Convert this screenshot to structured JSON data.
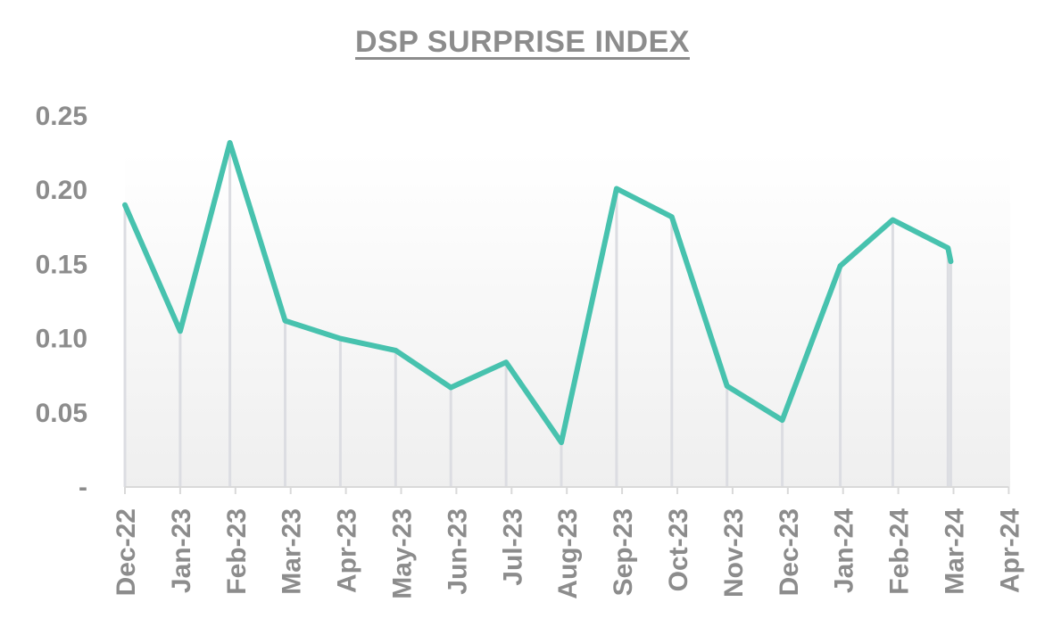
{
  "chart_data": {
    "type": "line",
    "title": "DSP SURPRISE INDEX",
    "xlabel": "",
    "ylabel": "",
    "x_tick_labels": [
      "Dec-22",
      "Jan-23",
      "Feb-23",
      "Mar-23",
      "Apr-23",
      "May-23",
      "Jun-23",
      "Jul-23",
      "Aug-23",
      "Sep-23",
      "Oct-23",
      "Nov-23",
      "Dec-23",
      "Jan-24",
      "Feb-24",
      "Mar-24",
      "Apr-24"
    ],
    "y_tick_labels": [
      "-",
      "0.05",
      "0.10",
      "0.15",
      "0.20",
      "0.25"
    ],
    "y_tick_values": [
      0,
      0.05,
      0.1,
      0.15,
      0.2,
      0.25
    ],
    "ylim": [
      0,
      0.25
    ],
    "series": [
      {
        "name": "DSP Surprise Index",
        "color": "#47c2ae",
        "points": [
          {
            "x": 0.0,
            "y": 0.19
          },
          {
            "x": 1.0,
            "y": 0.105
          },
          {
            "x": 1.9,
            "y": 0.232
          },
          {
            "x": 2.9,
            "y": 0.112
          },
          {
            "x": 3.9,
            "y": 0.1
          },
          {
            "x": 4.9,
            "y": 0.092
          },
          {
            "x": 5.9,
            "y": 0.067
          },
          {
            "x": 6.9,
            "y": 0.084
          },
          {
            "x": 7.9,
            "y": 0.03
          },
          {
            "x": 8.9,
            "y": 0.201
          },
          {
            "x": 9.9,
            "y": 0.182
          },
          {
            "x": 10.9,
            "y": 0.068
          },
          {
            "x": 11.9,
            "y": 0.045
          },
          {
            "x": 12.95,
            "y": 0.149
          },
          {
            "x": 13.9,
            "y": 0.18
          },
          {
            "x": 14.9,
            "y": 0.161
          },
          {
            "x": 14.95,
            "y": 0.152
          }
        ]
      }
    ],
    "grid": "vertical drop lines",
    "legend": "none"
  }
}
